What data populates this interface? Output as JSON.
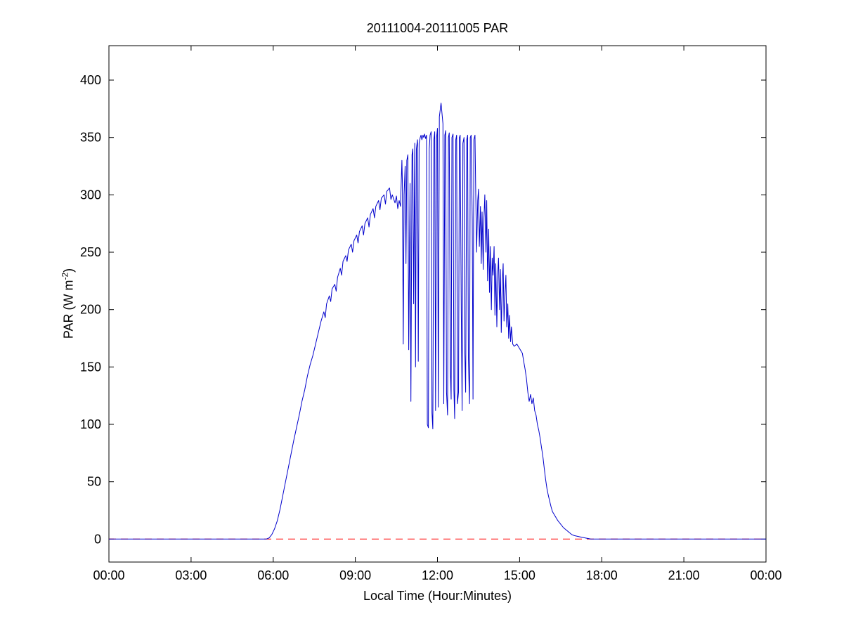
{
  "chart_data": {
    "type": "line",
    "title": "20111004-20111005 PAR",
    "xlabel": "Local Time (Hour:Minutes)",
    "ylabel_pre": "PAR (W m",
    "ylabel_sup": "-2",
    "ylabel_post": ")",
    "xlim": [
      0,
      24
    ],
    "ylim": [
      -20,
      430
    ],
    "grid": false,
    "legend_position": "none",
    "axis_color": "#000000",
    "x_ticks": [
      {
        "value": 0,
        "label": "00:00"
      },
      {
        "value": 3,
        "label": "03:00"
      },
      {
        "value": 6,
        "label": "06:00"
      },
      {
        "value": 9,
        "label": "09:00"
      },
      {
        "value": 12,
        "label": "12:00"
      },
      {
        "value": 15,
        "label": "15:00"
      },
      {
        "value": 18,
        "label": "18:00"
      },
      {
        "value": 21,
        "label": "21:00"
      },
      {
        "value": 24,
        "label": "00:00"
      }
    ],
    "y_ticks": [
      {
        "value": 0,
        "label": "0"
      },
      {
        "value": 50,
        "label": "50"
      },
      {
        "value": 100,
        "label": "100"
      },
      {
        "value": 150,
        "label": "150"
      },
      {
        "value": 200,
        "label": "200"
      },
      {
        "value": 250,
        "label": "250"
      },
      {
        "value": 300,
        "label": "300"
      },
      {
        "value": 350,
        "label": "350"
      },
      {
        "value": 400,
        "label": "400"
      }
    ],
    "zero_line": {
      "y": 0,
      "color": "#ff0000",
      "style": "dashed"
    },
    "series": [
      {
        "name": "PAR",
        "color": "#0000cc",
        "points": [
          [
            0,
            0
          ],
          [
            1,
            0
          ],
          [
            2,
            0
          ],
          [
            3,
            0
          ],
          [
            4,
            0
          ],
          [
            5,
            0
          ],
          [
            5.6,
            0
          ],
          [
            5.75,
            0
          ],
          [
            5.85,
            1
          ],
          [
            5.95,
            4
          ],
          [
            6.05,
            9
          ],
          [
            6.15,
            16
          ],
          [
            6.25,
            26
          ],
          [
            6.35,
            38
          ],
          [
            6.45,
            50
          ],
          [
            6.55,
            62
          ],
          [
            6.65,
            74
          ],
          [
            6.75,
            86
          ],
          [
            6.85,
            97
          ],
          [
            6.95,
            108
          ],
          [
            7.05,
            120
          ],
          [
            7.15,
            130
          ],
          [
            7.25,
            142
          ],
          [
            7.35,
            152
          ],
          [
            7.45,
            160
          ],
          [
            7.55,
            170
          ],
          [
            7.65,
            180
          ],
          [
            7.75,
            190
          ],
          [
            7.85,
            198
          ],
          [
            7.9,
            193
          ],
          [
            7.95,
            205
          ],
          [
            8.05,
            212
          ],
          [
            8.1,
            207
          ],
          [
            8.15,
            218
          ],
          [
            8.25,
            222
          ],
          [
            8.3,
            216
          ],
          [
            8.35,
            228
          ],
          [
            8.45,
            236
          ],
          [
            8.5,
            230
          ],
          [
            8.55,
            242
          ],
          [
            8.65,
            247
          ],
          [
            8.7,
            242
          ],
          [
            8.75,
            252
          ],
          [
            8.85,
            257
          ],
          [
            8.9,
            250
          ],
          [
            8.95,
            260
          ],
          [
            9.05,
            265
          ],
          [
            9.1,
            258
          ],
          [
            9.15,
            268
          ],
          [
            9.25,
            273
          ],
          [
            9.3,
            265
          ],
          [
            9.35,
            275
          ],
          [
            9.45,
            280
          ],
          [
            9.5,
            272
          ],
          [
            9.55,
            283
          ],
          [
            9.65,
            288
          ],
          [
            9.7,
            280
          ],
          [
            9.75,
            290
          ],
          [
            9.85,
            295
          ],
          [
            9.9,
            287
          ],
          [
            9.95,
            297
          ],
          [
            10.05,
            300
          ],
          [
            10.1,
            292
          ],
          [
            10.15,
            303
          ],
          [
            10.25,
            306
          ],
          [
            10.3,
            296
          ],
          [
            10.35,
            300
          ],
          [
            10.45,
            293
          ],
          [
            10.5,
            299
          ],
          [
            10.55,
            288
          ],
          [
            10.6,
            295
          ],
          [
            10.65,
            290
          ],
          [
            10.7,
            330
          ],
          [
            10.72,
            310
          ],
          [
            10.75,
            170
          ],
          [
            10.78,
            300
          ],
          [
            10.82,
            325
          ],
          [
            10.85,
            240
          ],
          [
            10.88,
            330
          ],
          [
            10.92,
            335
          ],
          [
            10.95,
            165
          ],
          [
            11.0,
            310
          ],
          [
            11.03,
            120
          ],
          [
            11.07,
            335
          ],
          [
            11.1,
            340
          ],
          [
            11.13,
            205
          ],
          [
            11.17,
            345
          ],
          [
            11.2,
            150
          ],
          [
            11.23,
            340
          ],
          [
            11.27,
            348
          ],
          [
            11.3,
            155
          ],
          [
            11.33,
            345
          ],
          [
            11.37,
            350
          ],
          [
            11.4,
            352
          ],
          [
            11.43,
            348
          ],
          [
            11.47,
            352
          ],
          [
            11.5,
            350
          ],
          [
            11.53,
            353
          ],
          [
            11.57,
            349
          ],
          [
            11.6,
            352
          ],
          [
            11.63,
            100
          ],
          [
            11.67,
            97
          ],
          [
            11.7,
            340
          ],
          [
            11.73,
            352
          ],
          [
            11.77,
            355
          ],
          [
            11.8,
            110
          ],
          [
            11.83,
            96
          ],
          [
            11.87,
            348
          ],
          [
            11.9,
            355
          ],
          [
            11.93,
            112
          ],
          [
            11.97,
            350
          ],
          [
            12.0,
            358
          ],
          [
            12.03,
            115
          ],
          [
            12.07,
            368
          ],
          [
            12.1,
            374
          ],
          [
            12.13,
            380
          ],
          [
            12.17,
            370
          ],
          [
            12.2,
            362
          ],
          [
            12.23,
            118
          ],
          [
            12.27,
            352
          ],
          [
            12.3,
            356
          ],
          [
            12.33,
            128
          ],
          [
            12.37,
            108
          ],
          [
            12.4,
            350
          ],
          [
            12.43,
            354
          ],
          [
            12.47,
            148
          ],
          [
            12.5,
            122
          ],
          [
            12.53,
            350
          ],
          [
            12.57,
            353
          ],
          [
            12.6,
            130
          ],
          [
            12.63,
            105
          ],
          [
            12.67,
            348
          ],
          [
            12.7,
            352
          ],
          [
            12.73,
            118
          ],
          [
            12.77,
            128
          ],
          [
            12.8,
            350
          ],
          [
            12.83,
            352
          ],
          [
            12.87,
            198
          ],
          [
            12.9,
            112
          ],
          [
            12.93,
            345
          ],
          [
            12.97,
            350
          ],
          [
            13.0,
            162
          ],
          [
            13.03,
            128
          ],
          [
            13.07,
            348
          ],
          [
            13.1,
            352
          ],
          [
            13.13,
            158
          ],
          [
            13.17,
            118
          ],
          [
            13.2,
            350
          ],
          [
            13.23,
            352
          ],
          [
            13.27,
            278
          ],
          [
            13.3,
            122
          ],
          [
            13.33,
            348
          ],
          [
            13.37,
            352
          ],
          [
            13.4,
            300
          ],
          [
            13.43,
            250
          ],
          [
            13.47,
            295
          ],
          [
            13.5,
            305
          ],
          [
            13.53,
            255
          ],
          [
            13.57,
            290
          ],
          [
            13.6,
            240
          ],
          [
            13.63,
            285
          ],
          [
            13.67,
            235
          ],
          [
            13.7,
            280
          ],
          [
            13.73,
            300
          ],
          [
            13.77,
            250
          ],
          [
            13.8,
            295
          ],
          [
            13.83,
            225
          ],
          [
            13.87,
            270
          ],
          [
            13.9,
            215
          ],
          [
            13.93,
            255
          ],
          [
            13.97,
            200
          ],
          [
            14.0,
            245
          ],
          [
            14.03,
            230
          ],
          [
            14.07,
            255
          ],
          [
            14.1,
            195
          ],
          [
            14.13,
            240
          ],
          [
            14.17,
            185
          ],
          [
            14.2,
            230
          ],
          [
            14.23,
            245
          ],
          [
            14.27,
            200
          ],
          [
            14.3,
            235
          ],
          [
            14.33,
            180
          ],
          [
            14.37,
            225
          ],
          [
            14.4,
            240
          ],
          [
            14.43,
            190
          ],
          [
            14.47,
            215
          ],
          [
            14.5,
            230
          ],
          [
            14.53,
            185
          ],
          [
            14.57,
            205
          ],
          [
            14.6,
            175
          ],
          [
            14.63,
            195
          ],
          [
            14.67,
            172
          ],
          [
            14.7,
            185
          ],
          [
            14.75,
            170
          ],
          [
            14.8,
            168
          ],
          [
            14.9,
            170
          ],
          [
            15.0,
            166
          ],
          [
            15.1,
            162
          ],
          [
            15.15,
            155
          ],
          [
            15.2,
            148
          ],
          [
            15.25,
            140
          ],
          [
            15.3,
            128
          ],
          [
            15.35,
            120
          ],
          [
            15.4,
            126
          ],
          [
            15.45,
            118
          ],
          [
            15.5,
            123
          ],
          [
            15.55,
            112
          ],
          [
            15.6,
            108
          ],
          [
            15.65,
            100
          ],
          [
            15.7,
            95
          ],
          [
            15.75,
            88
          ],
          [
            15.8,
            80
          ],
          [
            15.85,
            72
          ],
          [
            15.9,
            62
          ],
          [
            15.95,
            52
          ],
          [
            16.0,
            44
          ],
          [
            16.05,
            38
          ],
          [
            16.1,
            33
          ],
          [
            16.15,
            28
          ],
          [
            16.2,
            24
          ],
          [
            16.3,
            20
          ],
          [
            16.4,
            16
          ],
          [
            16.5,
            13
          ],
          [
            16.6,
            10
          ],
          [
            16.7,
            8
          ],
          [
            16.8,
            6
          ],
          [
            16.9,
            4
          ],
          [
            17.0,
            3
          ],
          [
            17.2,
            2
          ],
          [
            17.4,
            1
          ],
          [
            17.6,
            0
          ],
          [
            17.75,
            0
          ],
          [
            18,
            0
          ],
          [
            19,
            0
          ],
          [
            20,
            0
          ],
          [
            21,
            0
          ],
          [
            22,
            0
          ],
          [
            23,
            0
          ],
          [
            24,
            0
          ]
        ]
      }
    ]
  }
}
